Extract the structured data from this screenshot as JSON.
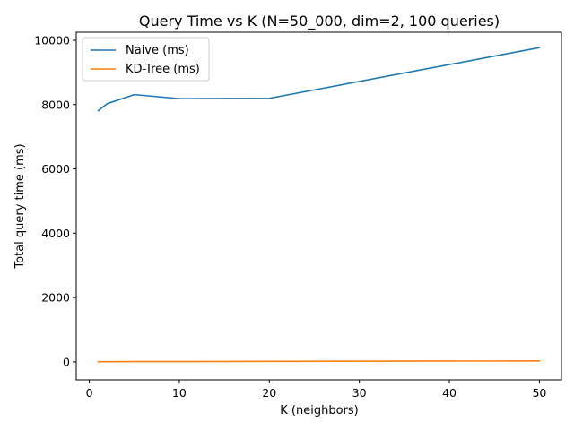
{
  "chart_data": {
    "type": "line",
    "title": "Query Time vs K (N=50_000, dim=2, 100 queries)",
    "xlabel": "K (neighbors)",
    "ylabel": "Total query time (ms)",
    "xlim": [
      -1.45,
      52.45
    ],
    "ylim": [
      -560,
      10250
    ],
    "xticks": [
      0,
      10,
      20,
      30,
      40,
      50
    ],
    "yticks": [
      0,
      2000,
      4000,
      6000,
      8000,
      10000
    ],
    "grid": false,
    "legend_position": "top-left",
    "series": [
      {
        "name": "Naive (ms)",
        "color": "#1f77b4",
        "x": [
          1,
          2,
          5,
          10,
          20,
          50
        ],
        "y": [
          7810,
          8030,
          8310,
          8185,
          8195,
          9770
        ]
      },
      {
        "name": "KD-Tree (ms)",
        "color": "#ff7f0e",
        "x": [
          1,
          2,
          5,
          10,
          20,
          50
        ],
        "y": [
          5,
          6,
          8,
          10,
          15,
          30
        ]
      }
    ]
  }
}
